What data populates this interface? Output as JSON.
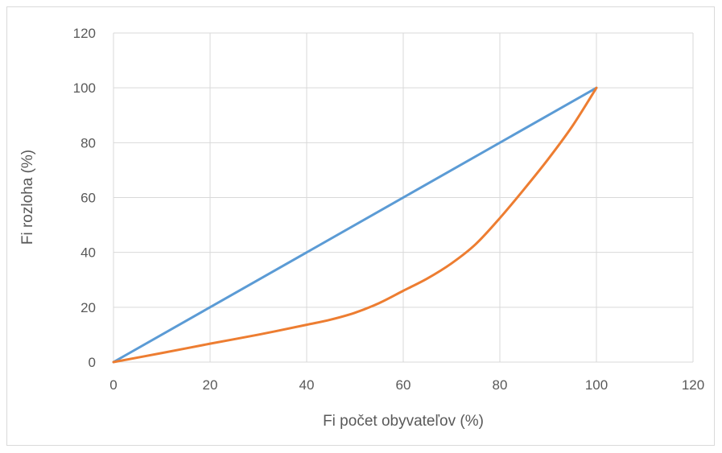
{
  "chart_data": {
    "type": "line",
    "title": "",
    "xlabel": "Fi počet obyvateľov (%)",
    "ylabel": "Fi rozloha (%)",
    "xlim": [
      0,
      120
    ],
    "ylim": [
      0,
      120
    ],
    "xticks": [
      0,
      20,
      40,
      60,
      80,
      100,
      120
    ],
    "yticks": [
      0,
      20,
      40,
      60,
      80,
      100,
      120
    ],
    "grid": true,
    "legend": "none",
    "series": [
      {
        "color": "#5b9bd5",
        "points": [
          [
            0,
            0
          ],
          [
            100,
            100
          ]
        ]
      },
      {
        "color": "#ed7d31",
        "points": [
          [
            0,
            0
          ],
          [
            10,
            3.3
          ],
          [
            20,
            6.7
          ],
          [
            30,
            10
          ],
          [
            40,
            13.6
          ],
          [
            45,
            15.5
          ],
          [
            50,
            18
          ],
          [
            55,
            21.5
          ],
          [
            60,
            26
          ],
          [
            65,
            30.5
          ],
          [
            70,
            36
          ],
          [
            75,
            43
          ],
          [
            80,
            52.5
          ],
          [
            85,
            63
          ],
          [
            90,
            74
          ],
          [
            95,
            86
          ],
          [
            100,
            100
          ]
        ]
      }
    ]
  }
}
